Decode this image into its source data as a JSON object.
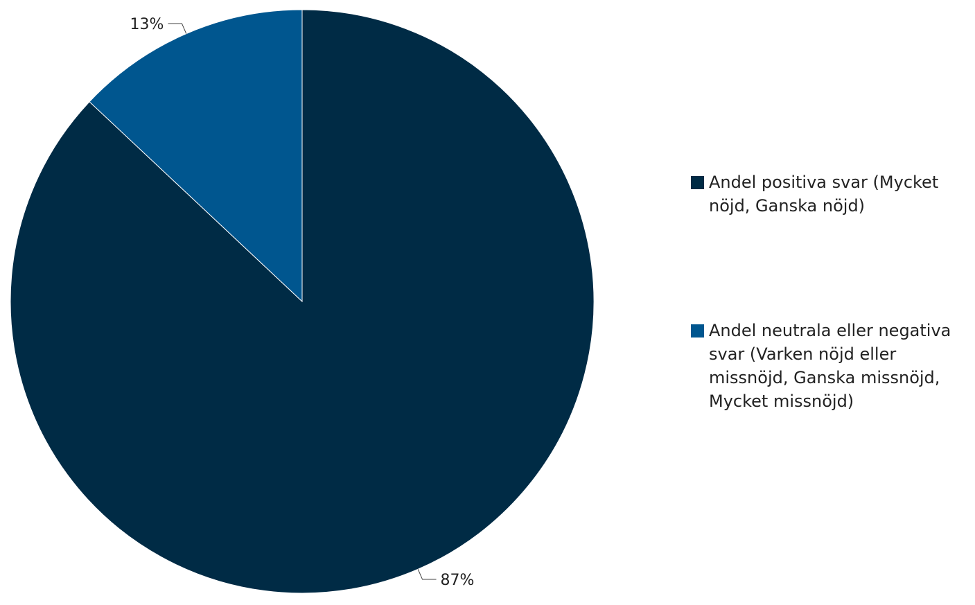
{
  "chart_data": {
    "type": "pie",
    "categories": [
      "Andel positiva svar (Mycket nöjd, Ganska nöjd)",
      "Andel neutrala eller negativa svar (Varken nöjd eller missnöjd, Ganska missnöjd, Mycket missnöjd)"
    ],
    "values": [
      87,
      13
    ],
    "data_labels": [
      "87%",
      "13%"
    ],
    "colors": [
      "#002b45",
      "#00568f"
    ],
    "title": "",
    "legend_position": "right"
  }
}
